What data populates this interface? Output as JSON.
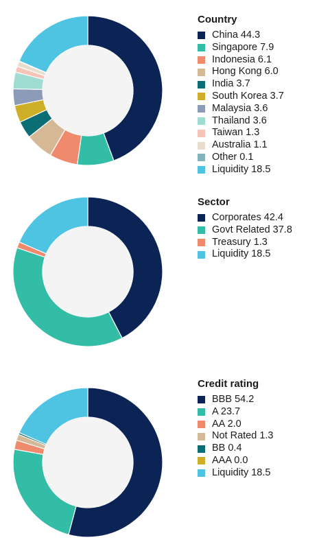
{
  "chart_data": [
    {
      "type": "pie",
      "donut": true,
      "legend_title": "Country",
      "legend_placement": "right",
      "slices": [
        {
          "label": "China",
          "value": 44.3,
          "color": "#0b2455"
        },
        {
          "label": "Singapore",
          "value": 7.9,
          "color": "#34bda6"
        },
        {
          "label": "Indonesia",
          "value": 6.1,
          "color": "#f08a6d"
        },
        {
          "label": "Hong Kong",
          "value": 6.0,
          "color": "#d5b895"
        },
        {
          "label": "India",
          "value": 3.7,
          "color": "#0a6e74"
        },
        {
          "label": "South Korea",
          "value": 3.7,
          "color": "#cfae27"
        },
        {
          "label": "Malaysia",
          "value": 3.6,
          "color": "#8c9bb8"
        },
        {
          "label": "Thailand",
          "value": 3.6,
          "color": "#9fdcd2"
        },
        {
          "label": "Taiwan",
          "value": 1.3,
          "color": "#f7c5b8"
        },
        {
          "label": "Australia",
          "value": 1.1,
          "color": "#e8dccc"
        },
        {
          "label": "Other",
          "value": 0.1,
          "color": "#82b4ba"
        },
        {
          "label": "Liquidity",
          "value": 18.5,
          "color": "#4ec4e2"
        }
      ]
    },
    {
      "type": "pie",
      "donut": true,
      "legend_title": "Sector",
      "legend_placement": "right",
      "slices": [
        {
          "label": "Corporates",
          "value": 42.4,
          "color": "#0b2455"
        },
        {
          "label": "Govt Related",
          "value": 37.8,
          "color": "#34bda6"
        },
        {
          "label": "Treasury",
          "value": 1.3,
          "color": "#f08a6d"
        },
        {
          "label": "Liquidity",
          "value": 18.5,
          "color": "#4ec4e2"
        }
      ]
    },
    {
      "type": "pie",
      "donut": true,
      "legend_title": "Credit rating",
      "legend_placement": "right",
      "slices": [
        {
          "label": "BBB",
          "value": 54.2,
          "color": "#0b2455"
        },
        {
          "label": "A",
          "value": 23.7,
          "color": "#34bda6"
        },
        {
          "label": "AA",
          "value": 2.0,
          "color": "#f08a6d"
        },
        {
          "label": "Not Rated",
          "value": 1.3,
          "color": "#d5b895"
        },
        {
          "label": "BB",
          "value": 0.4,
          "color": "#0a6e74"
        },
        {
          "label": "AAA",
          "value": 0.0,
          "color": "#cfae27"
        },
        {
          "label": "Liquidity ",
          "value": 18.5,
          "color": "#4ec4e2"
        }
      ]
    }
  ]
}
